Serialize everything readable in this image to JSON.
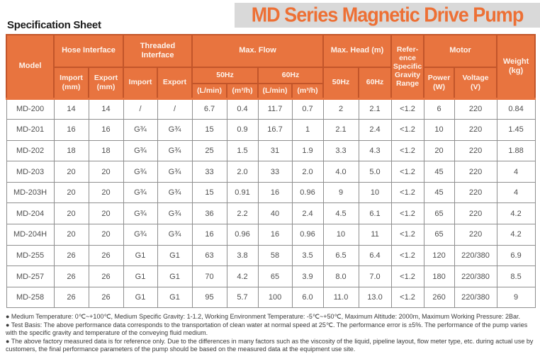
{
  "page": {
    "heading": "Specification Sheet",
    "banner_title": "MD Series Magnetic Drive Pump",
    "colors": {
      "accent_orange": "#ED7035",
      "table_header_bg": "#E8743F",
      "header_border": "#C2552A",
      "banner_bg": "#D9D9D9",
      "body_border": "#8F8F8F"
    }
  },
  "table": {
    "header": {
      "model": "Model",
      "hose_interface": "Hose Interface",
      "threaded_interface": "Threaded\nInterface",
      "max_flow": "Max. Flow",
      "max_head": "Max. Head (m)",
      "reference": "Refer-\nence\nSpecific\nGravity\nRange",
      "motor": "Motor",
      "weight": "Weight\n(kg)",
      "import_mm": "Import\n(mm)",
      "export_mm": "Export\n(mm)",
      "import_label": "Import",
      "export_label": "Export",
      "hz50": "50Hz",
      "hz60": "60Hz",
      "l_min": "(L/min)",
      "m3_h": "(m³/h)",
      "power_w": "Power\n(W)",
      "voltage_v": "Voltage\n(V)"
    },
    "rows": [
      [
        "MD-200",
        "14",
        "14",
        "/",
        "/",
        "6.7",
        "0.4",
        "11.7",
        "0.7",
        "2",
        "2.1",
        "<1.2",
        "6",
        "220",
        "0.84"
      ],
      [
        "MD-201",
        "16",
        "16",
        "G¾",
        "G¾",
        "15",
        "0.9",
        "16.7",
        "1",
        "2.1",
        "2.4",
        "<1.2",
        "10",
        "220",
        "1.45"
      ],
      [
        "MD-202",
        "18",
        "18",
        "G¾",
        "G¾",
        "25",
        "1.5",
        "31",
        "1.9",
        "3.3",
        "4.3",
        "<1.2",
        "20",
        "220",
        "1.88"
      ],
      [
        "MD-203",
        "20",
        "20",
        "G¾",
        "G¾",
        "33",
        "2.0",
        "33",
        "2.0",
        "4.0",
        "5.0",
        "<1.2",
        "45",
        "220",
        "4"
      ],
      [
        "MD-203H",
        "20",
        "20",
        "G¾",
        "G¾",
        "15",
        "0.91",
        "16",
        "0.96",
        "9",
        "10",
        "<1.2",
        "45",
        "220",
        "4"
      ],
      [
        "MD-204",
        "20",
        "20",
        "G¾",
        "G¾",
        "36",
        "2.2",
        "40",
        "2.4",
        "4.5",
        "6.1",
        "<1.2",
        "65",
        "220",
        "4.2"
      ],
      [
        "MD-204H",
        "20",
        "20",
        "G¾",
        "G¾",
        "16",
        "0.96",
        "16",
        "0.96",
        "10",
        "11",
        "<1.2",
        "65",
        "220",
        "4.2"
      ],
      [
        "MD-255",
        "26",
        "26",
        "G1",
        "G1",
        "63",
        "3.8",
        "58",
        "3.5",
        "6.5",
        "6.4",
        "<1.2",
        "120",
        "220/380",
        "6.9"
      ],
      [
        "MD-257",
        "26",
        "26",
        "G1",
        "G1",
        "70",
        "4.2",
        "65",
        "3.9",
        "8.0",
        "7.0",
        "<1.2",
        "180",
        "220/380",
        "8.5"
      ],
      [
        "MD-258",
        "26",
        "26",
        "G1",
        "G1",
        "95",
        "5.7",
        "100",
        "6.0",
        "11.0",
        "13.0",
        "<1.2",
        "260",
        "220/380",
        "9"
      ]
    ]
  },
  "notes": [
    "● Medium Temperature: 0℃~+100℃, Medium Specific Gravity: 1-1.2, Working Environment Temperature: -5℃~+50℃, Maximum Altitude: 2000m, Maximum Working Pressure: 2Bar.",
    "● Test Basis: The above performance data corresponds to the transportation of clean water at normal speed at 25℃. The performance error is ±5%. The performance of the pump varies with the specific gravity and temperature of the conveying fluid medium.",
    "● The above factory measured data is for reference only. Due to the differences in many factors such as the viscosity of the liquid, pipeline layout, flow meter type, etc. during actual use by customers, the final performance parameters of the pump should be based on the measured data at the equipment use site."
  ]
}
